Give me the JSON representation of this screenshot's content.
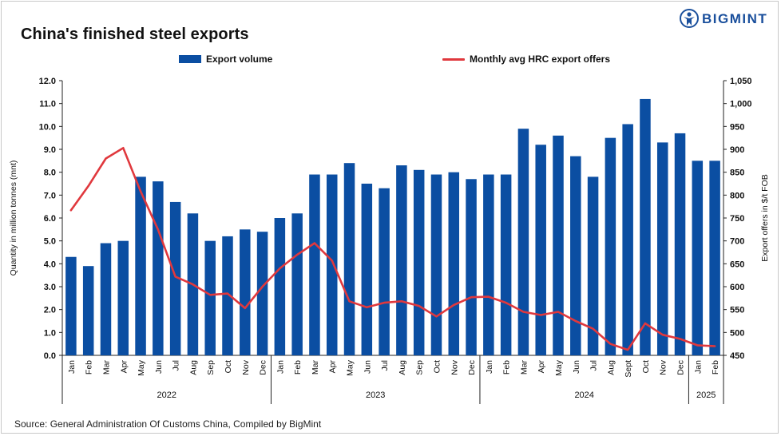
{
  "header": {
    "title": "China's finished steel exports",
    "brand": "BIGMINT"
  },
  "source": "Source: General Administration Of Customs China, Compiled by BigMint",
  "colors": {
    "bar": "#0b4ea2",
    "line": "#e0383d",
    "brand": "#1a4f9c"
  },
  "chart_data": {
    "type": "bar",
    "title": "China's finished steel exports",
    "categories": [
      "Jan",
      "Feb",
      "Mar",
      "Apr",
      "May",
      "Jun",
      "Jul",
      "Aug",
      "Sep",
      "Oct",
      "Nov",
      "Dec",
      "Jan",
      "Feb",
      "Mar",
      "Apr",
      "May",
      "Jun",
      "Jul",
      "Aug",
      "Sep",
      "Oct",
      "Nov",
      "Dec",
      "Jan",
      "Feb",
      "Mar",
      "Apr",
      "May",
      "Jun",
      "Jul",
      "Aug",
      "Sept",
      "Oct",
      "Nov",
      "Dec",
      "Jan",
      "Feb"
    ],
    "year_groups": [
      {
        "label": "2022",
        "count": 12
      },
      {
        "label": "2023",
        "count": 12
      },
      {
        "label": "2024",
        "count": 12
      },
      {
        "label": "2025",
        "count": 2
      }
    ],
    "series": [
      {
        "name": "Export volume",
        "type": "bar",
        "axis": "left",
        "values": [
          4.3,
          3.9,
          4.9,
          5.0,
          7.8,
          7.6,
          6.7,
          6.2,
          5.0,
          5.2,
          5.5,
          5.4,
          6.0,
          6.2,
          7.9,
          7.9,
          8.4,
          7.5,
          7.3,
          8.3,
          8.1,
          7.9,
          8.0,
          7.7,
          7.9,
          7.9,
          9.9,
          9.2,
          9.6,
          8.7,
          7.8,
          9.5,
          10.1,
          11.2,
          9.3,
          9.7,
          8.5,
          8.5
        ]
      },
      {
        "name": "Monthly avg HRC export offers",
        "type": "line",
        "axis": "right",
        "values": [
          767,
          820,
          880,
          903,
          808,
          725,
          622,
          605,
          582,
          585,
          553,
          600,
          640,
          670,
          695,
          657,
          568,
          555,
          565,
          568,
          558,
          535,
          560,
          577,
          578,
          565,
          545,
          538,
          545,
          525,
          508,
          475,
          462,
          520,
          495,
          486,
          472,
          470
        ]
      }
    ],
    "ylabel": "Quantity in million tonnes (mnt)",
    "ylim": [
      0,
      12
    ],
    "yticks": [
      "0.0",
      "1.0",
      "2.0",
      "3.0",
      "4.0",
      "5.0",
      "6.0",
      "7.0",
      "8.0",
      "9.0",
      "10.0",
      "11.0",
      "12.0"
    ],
    "y2label": "Export offers in $/t FOB",
    "y2lim": [
      450,
      1050
    ],
    "y2ticks": [
      "450",
      "500",
      "550",
      "600",
      "650",
      "700",
      "750",
      "800",
      "850",
      "900",
      "950",
      "1,000",
      "1,050"
    ],
    "legend": "top-center",
    "grid": false
  }
}
